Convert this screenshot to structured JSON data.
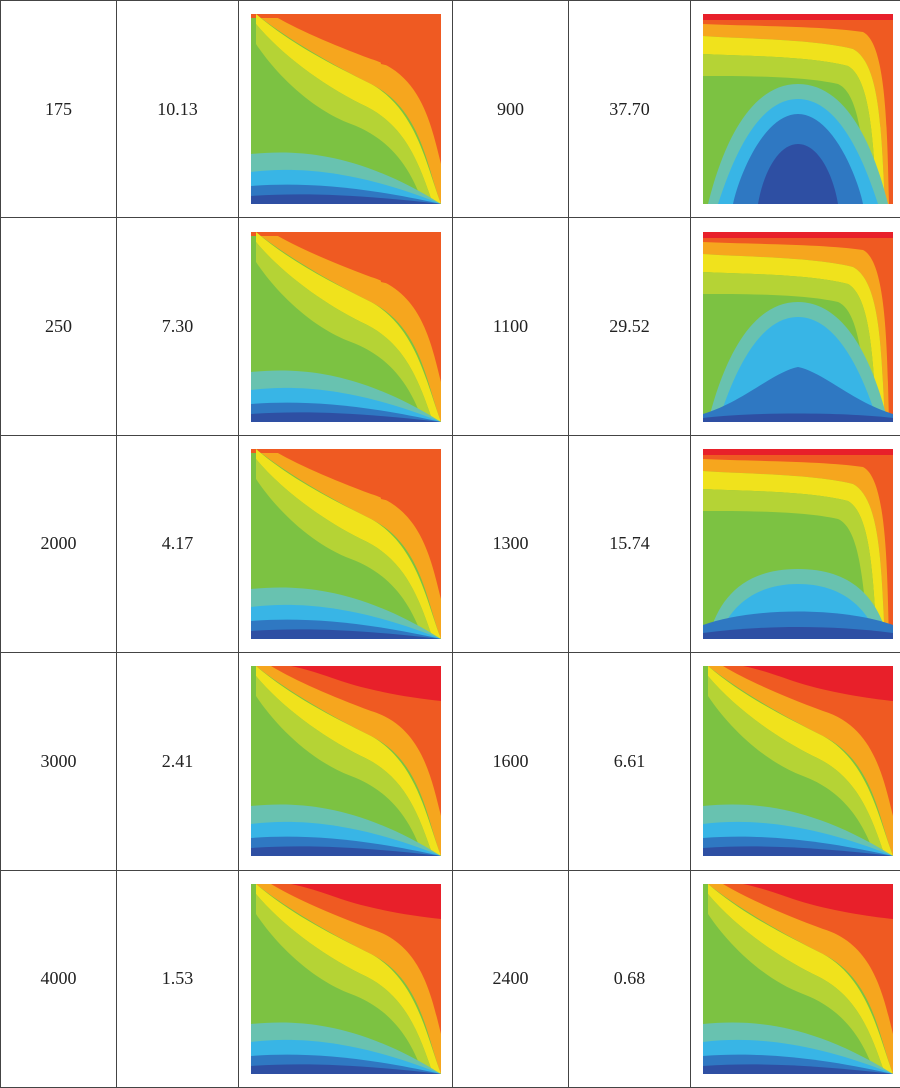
{
  "rows": [
    {
      "left": {
        "param": "175",
        "value": "10.13",
        "contour": "contour-a"
      },
      "right": {
        "param": "900",
        "value": "37.70",
        "contour": "contour-dome-high"
      }
    },
    {
      "left": {
        "param": "250",
        "value": "7.30",
        "contour": "contour-a"
      },
      "right": {
        "param": "1100",
        "value": "29.52",
        "contour": "contour-dome-mid"
      }
    },
    {
      "left": {
        "param": "2000",
        "value": "4.17",
        "contour": "contour-a"
      },
      "right": {
        "param": "1300",
        "value": "15.74",
        "contour": "contour-dome-low"
      }
    },
    {
      "left": {
        "param": "3000",
        "value": "2.41",
        "contour": "contour-b"
      },
      "right": {
        "param": "1600",
        "value": "6.61",
        "contour": "contour-b"
      }
    },
    {
      "left": {
        "param": "4000",
        "value": "1.53",
        "contour": "contour-b"
      },
      "right": {
        "param": "2400",
        "value": "0.68",
        "contour": "contour-b"
      }
    }
  ],
  "colors": {
    "red": "#e8202a",
    "orange_red": "#ef5a22",
    "orange": "#f6a61e",
    "yellow": "#f0e21c",
    "yellow_green": "#b5d335",
    "green": "#7cc242",
    "teal": "#68c2b0",
    "light_blue": "#38b5e6",
    "mid_blue": "#2f78c2",
    "dark_blue": "#2e4fa3"
  }
}
